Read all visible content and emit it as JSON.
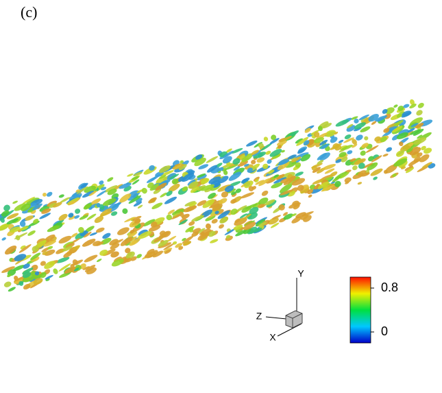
{
  "panel_label": "(c)",
  "axes_triad": {
    "y_label": "Y",
    "z_label": "Z",
    "x_label": "X"
  },
  "colorbar": {
    "lim": [
      -0.2,
      1.0
    ],
    "ticks": [
      0,
      0.8
    ]
  }
}
